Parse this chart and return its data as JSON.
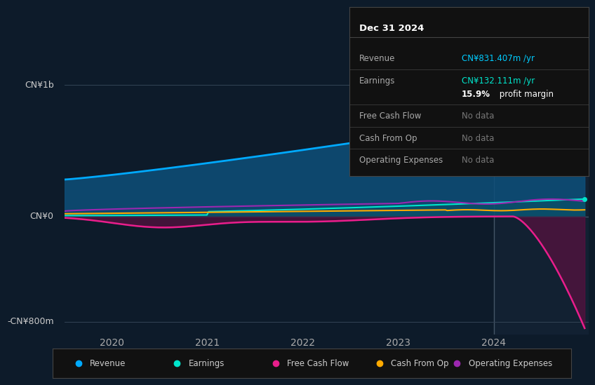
{
  "bg_color": "#0d1b2a",
  "plot_bg_color": "#0d1b2a",
  "y_label_top": "CN¥1b",
  "y_label_zero": "CN¥0",
  "y_label_bottom": "-CN¥800m",
  "x_ticks": [
    "2020",
    "2021",
    "2022",
    "2023",
    "2024"
  ],
  "y_min": -900,
  "y_max": 1100,
  "revenue_color": "#00aaff",
  "earnings_color": "#00e5cc",
  "free_cash_flow_color": "#e91e8c",
  "cash_from_op_color": "#ffaa00",
  "operating_exp_color": "#9c27b0",
  "revenue_fill_color": "#0d4f7a",
  "free_cash_flow_fill_color": "#5a1040",
  "info_box": {
    "title": "Dec 31 2024",
    "rows": [
      {
        "label": "Revenue",
        "value": "CN¥831.407m /yr",
        "value_color": "#00ccff",
        "bold_prefix": ""
      },
      {
        "label": "Earnings",
        "value": "CN¥132.111m /yr",
        "value_color": "#00e5cc",
        "bold_prefix": ""
      },
      {
        "label": "",
        "value": "profit margin",
        "value_color": "#ffffff",
        "bold_prefix": "15.9%"
      },
      {
        "label": "Free Cash Flow",
        "value": "No data",
        "value_color": "#777777",
        "bold_prefix": ""
      },
      {
        "label": "Cash From Op",
        "value": "No data",
        "value_color": "#777777",
        "bold_prefix": ""
      },
      {
        "label": "Operating Expenses",
        "value": "No data",
        "value_color": "#777777",
        "bold_prefix": ""
      }
    ]
  },
  "legend": [
    {
      "label": "Revenue",
      "color": "#00aaff"
    },
    {
      "label": "Earnings",
      "color": "#00e5cc"
    },
    {
      "label": "Free Cash Flow",
      "color": "#e91e8c"
    },
    {
      "label": "Cash From Op",
      "color": "#ffaa00"
    },
    {
      "label": "Operating Expenses",
      "color": "#9c27b0"
    }
  ]
}
